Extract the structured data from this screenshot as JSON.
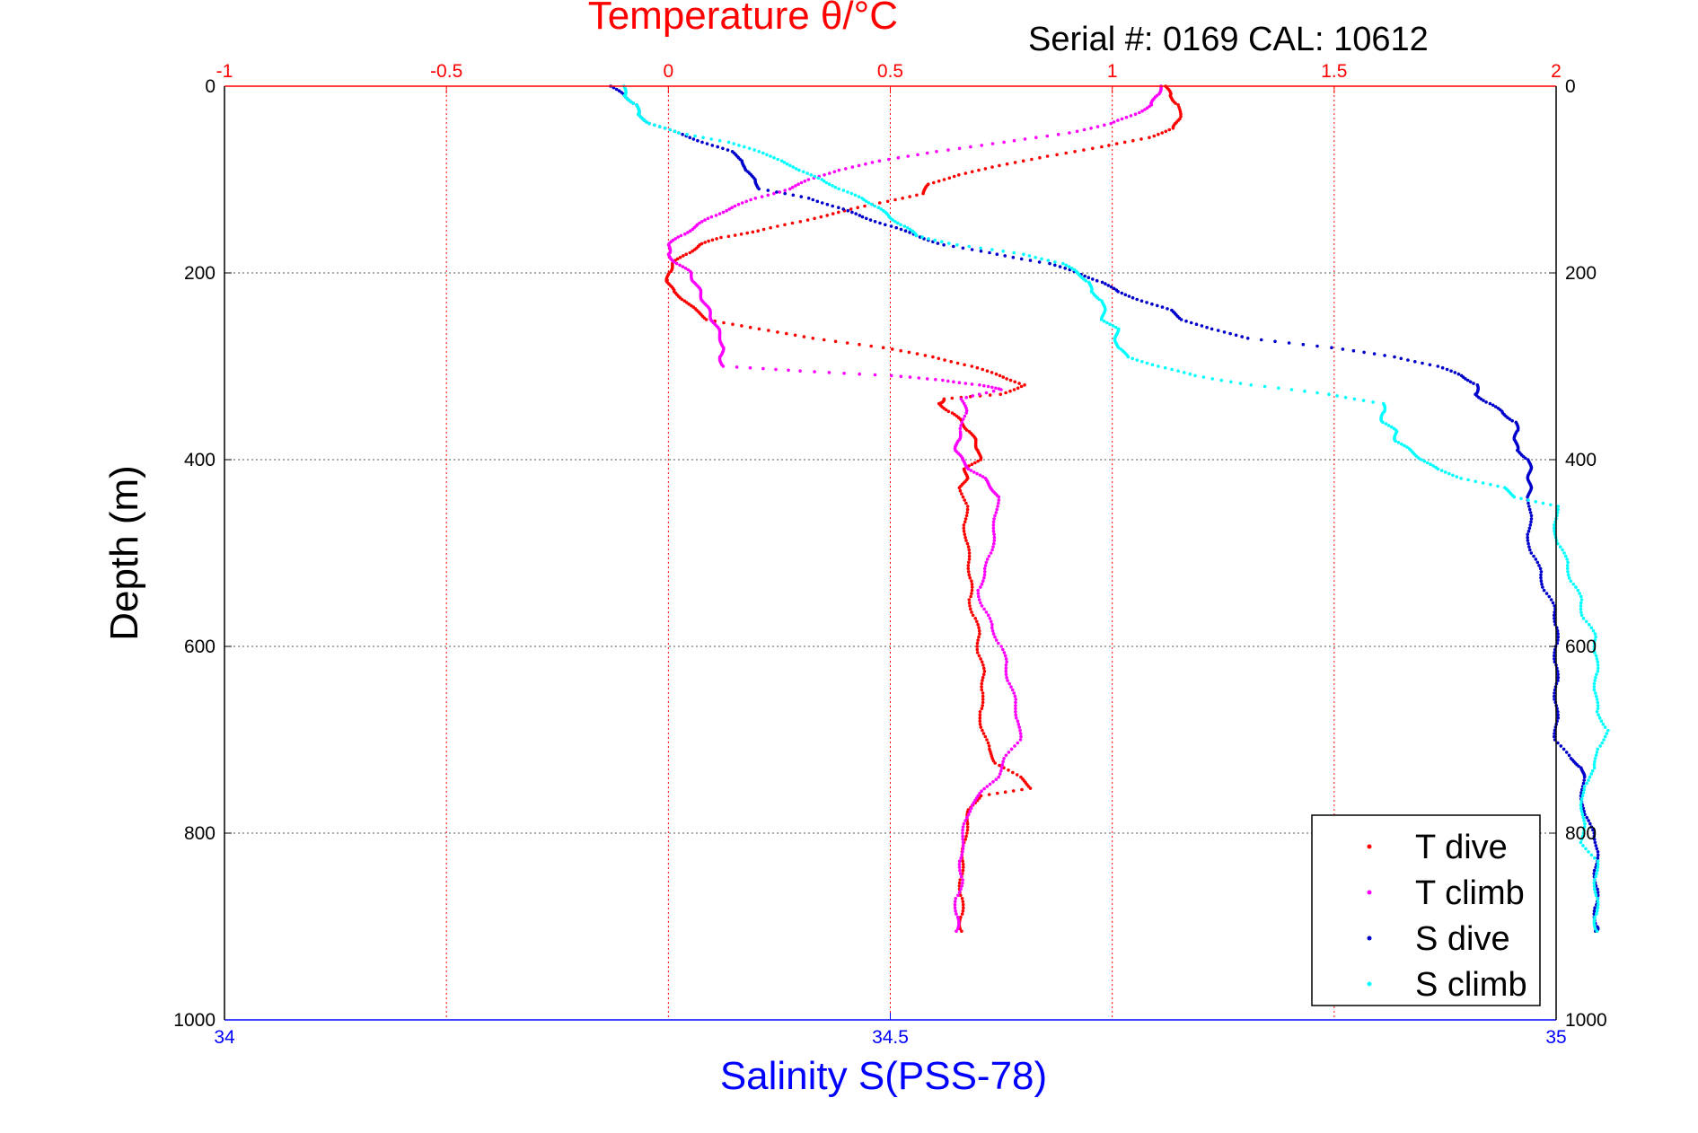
{
  "chart_data": {
    "type": "scatter",
    "title": "Temperature θ/°C",
    "annotation": "Serial #: 0169 CAL: 10612",
    "ylabel": "Depth (m)",
    "xlabel_bottom": "Salinity S(PSS-78)",
    "xlabel_top": "Temperature θ/°C",
    "ylim": [
      1000,
      0
    ],
    "xlim_bottom": [
      34,
      35
    ],
    "xlim_top": [
      -1,
      2
    ],
    "y_ticks": [
      "0",
      "200",
      "400",
      "600",
      "800",
      "1000"
    ],
    "x_bottom_ticks": [
      "34",
      "34.5",
      "35"
    ],
    "x_top_ticks": [
      "-1",
      "-0.5",
      "0",
      "0.5",
      "1",
      "1.5",
      "2"
    ],
    "grid": true,
    "legend_position": "bottom-right",
    "colors": {
      "temperature_axis": "#ff0000",
      "salinity_axis": "#0000ff",
      "t_dive": "#ff0000",
      "t_climb": "#ff00ff",
      "s_dive": "#0000cc",
      "s_climb": "#00ffff"
    },
    "series": [
      {
        "name": "T dive",
        "axis": "top",
        "points": [
          [
            1.12,
            0
          ],
          [
            1.13,
            10
          ],
          [
            1.15,
            20
          ],
          [
            1.15,
            35
          ],
          [
            1.14,
            45
          ],
          [
            1.08,
            55
          ],
          [
            0.98,
            65
          ],
          [
            0.85,
            75
          ],
          [
            0.75,
            85
          ],
          [
            0.65,
            95
          ],
          [
            0.59,
            105
          ],
          [
            0.57,
            115
          ],
          [
            0.48,
            125
          ],
          [
            0.38,
            135
          ],
          [
            0.3,
            145
          ],
          [
            0.2,
            155
          ],
          [
            0.12,
            162
          ],
          [
            0.07,
            170
          ],
          [
            0.04,
            180
          ],
          [
            0.01,
            190
          ],
          [
            0.0,
            200
          ],
          [
            0.0,
            210
          ],
          [
            0.01,
            220
          ],
          [
            0.04,
            230
          ],
          [
            0.06,
            240
          ],
          [
            0.09,
            250
          ],
          [
            0.2,
            260
          ],
          [
            0.33,
            270
          ],
          [
            0.48,
            280
          ],
          [
            0.6,
            290
          ],
          [
            0.68,
            300
          ],
          [
            0.75,
            310
          ],
          [
            0.8,
            320
          ],
          [
            0.75,
            330
          ],
          [
            0.62,
            335
          ],
          [
            0.61,
            340
          ],
          [
            0.64,
            350
          ],
          [
            0.66,
            360
          ],
          [
            0.68,
            370
          ],
          [
            0.69,
            380
          ],
          [
            0.7,
            390
          ],
          [
            0.7,
            400
          ],
          [
            0.67,
            410
          ],
          [
            0.67,
            420
          ],
          [
            0.66,
            430
          ],
          [
            0.67,
            450
          ],
          [
            0.67,
            470
          ],
          [
            0.67,
            490
          ],
          [
            0.68,
            510
          ],
          [
            0.68,
            530
          ],
          [
            0.68,
            550
          ],
          [
            0.69,
            570
          ],
          [
            0.7,
            590
          ],
          [
            0.7,
            610
          ],
          [
            0.71,
            630
          ],
          [
            0.71,
            650
          ],
          [
            0.7,
            670
          ],
          [
            0.71,
            690
          ],
          [
            0.72,
            710
          ],
          [
            0.74,
            725
          ],
          [
            0.79,
            740
          ],
          [
            0.82,
            752
          ],
          [
            0.7,
            760
          ],
          [
            0.68,
            775
          ],
          [
            0.67,
            790
          ],
          [
            0.67,
            810
          ],
          [
            0.66,
            830
          ],
          [
            0.66,
            850
          ],
          [
            0.66,
            870
          ],
          [
            0.66,
            890
          ],
          [
            0.66,
            905
          ]
        ]
      },
      {
        "name": "T climb",
        "axis": "top",
        "points": [
          [
            1.11,
            0
          ],
          [
            1.1,
            10
          ],
          [
            1.09,
            20
          ],
          [
            1.05,
            30
          ],
          [
            1.0,
            40
          ],
          [
            0.9,
            50
          ],
          [
            0.76,
            60
          ],
          [
            0.6,
            70
          ],
          [
            0.48,
            80
          ],
          [
            0.38,
            90
          ],
          [
            0.32,
            100
          ],
          [
            0.27,
            110
          ],
          [
            0.2,
            120
          ],
          [
            0.14,
            130
          ],
          [
            0.1,
            140
          ],
          [
            0.06,
            150
          ],
          [
            0.03,
            160
          ],
          [
            0.0,
            170
          ],
          [
            0.0,
            180
          ],
          [
            0.02,
            190
          ],
          [
            0.05,
            200
          ],
          [
            0.06,
            210
          ],
          [
            0.07,
            220
          ],
          [
            0.08,
            230
          ],
          [
            0.09,
            240
          ],
          [
            0.1,
            250
          ],
          [
            0.11,
            260
          ],
          [
            0.12,
            270
          ],
          [
            0.12,
            280
          ],
          [
            0.12,
            290
          ],
          [
            0.12,
            300
          ],
          [
            0.3,
            305
          ],
          [
            0.5,
            310
          ],
          [
            0.62,
            315
          ],
          [
            0.7,
            320
          ],
          [
            0.75,
            325
          ],
          [
            0.66,
            335
          ],
          [
            0.67,
            350
          ],
          [
            0.66,
            370
          ],
          [
            0.65,
            380
          ],
          [
            0.65,
            390
          ],
          [
            0.66,
            400
          ],
          [
            0.68,
            410
          ],
          [
            0.71,
            420
          ],
          [
            0.73,
            430
          ],
          [
            0.74,
            440
          ],
          [
            0.74,
            460
          ],
          [
            0.73,
            480
          ],
          [
            0.73,
            500
          ],
          [
            0.71,
            520
          ],
          [
            0.7,
            540
          ],
          [
            0.71,
            560
          ],
          [
            0.73,
            580
          ],
          [
            0.75,
            600
          ],
          [
            0.76,
            620
          ],
          [
            0.77,
            640
          ],
          [
            0.78,
            660
          ],
          [
            0.79,
            680
          ],
          [
            0.79,
            700
          ],
          [
            0.76,
            720
          ],
          [
            0.74,
            740
          ],
          [
            0.71,
            755
          ],
          [
            0.68,
            770
          ],
          [
            0.67,
            790
          ],
          [
            0.66,
            810
          ],
          [
            0.66,
            830
          ],
          [
            0.66,
            850
          ],
          [
            0.65,
            870
          ],
          [
            0.65,
            890
          ],
          [
            0.65,
            905
          ]
        ]
      },
      {
        "name": "S dive",
        "axis": "bottom",
        "points": [
          [
            34.29,
            0
          ],
          [
            34.3,
            10
          ],
          [
            34.31,
            20
          ],
          [
            34.31,
            30
          ],
          [
            34.32,
            40
          ],
          [
            34.34,
            50
          ],
          [
            34.36,
            60
          ],
          [
            34.38,
            70
          ],
          [
            34.39,
            80
          ],
          [
            34.39,
            90
          ],
          [
            34.4,
            100
          ],
          [
            34.4,
            110
          ],
          [
            34.44,
            120
          ],
          [
            34.46,
            130
          ],
          [
            34.48,
            140
          ],
          [
            34.5,
            150
          ],
          [
            34.52,
            160
          ],
          [
            34.54,
            170
          ],
          [
            34.58,
            180
          ],
          [
            34.62,
            190
          ],
          [
            34.64,
            200
          ],
          [
            34.66,
            210
          ],
          [
            34.67,
            220
          ],
          [
            34.69,
            230
          ],
          [
            34.71,
            240
          ],
          [
            34.72,
            250
          ],
          [
            34.74,
            260
          ],
          [
            34.77,
            270
          ],
          [
            34.83,
            280
          ],
          [
            34.88,
            290
          ],
          [
            34.91,
            300
          ],
          [
            34.93,
            310
          ],
          [
            34.94,
            320
          ],
          [
            34.94,
            330
          ],
          [
            34.95,
            340
          ],
          [
            34.96,
            350
          ],
          [
            34.97,
            360
          ],
          [
            34.97,
            370
          ],
          [
            34.97,
            380
          ],
          [
            34.97,
            390
          ],
          [
            34.98,
            400
          ],
          [
            34.98,
            410
          ],
          [
            34.98,
            420
          ],
          [
            34.98,
            430
          ],
          [
            34.98,
            440
          ],
          [
            34.98,
            460
          ],
          [
            34.98,
            480
          ],
          [
            34.98,
            500
          ],
          [
            34.99,
            520
          ],
          [
            34.99,
            540
          ],
          [
            35.0,
            560
          ],
          [
            35.0,
            580
          ],
          [
            35.0,
            600
          ],
          [
            35.0,
            620
          ],
          [
            35.0,
            640
          ],
          [
            35.0,
            660
          ],
          [
            35.0,
            680
          ],
          [
            35.0,
            700
          ],
          [
            35.01,
            720
          ],
          [
            35.02,
            730
          ],
          [
            35.02,
            740
          ],
          [
            35.02,
            760
          ],
          [
            35.02,
            780
          ],
          [
            35.03,
            800
          ],
          [
            35.03,
            820
          ],
          [
            35.03,
            840
          ],
          [
            35.03,
            860
          ],
          [
            35.03,
            880
          ],
          [
            35.03,
            900
          ],
          [
            35.03,
            905
          ]
        ]
      },
      {
        "name": "S climb",
        "axis": "bottom",
        "points": [
          [
            34.3,
            0
          ],
          [
            34.3,
            10
          ],
          [
            34.31,
            20
          ],
          [
            34.31,
            30
          ],
          [
            34.32,
            40
          ],
          [
            34.34,
            50
          ],
          [
            34.38,
            60
          ],
          [
            34.4,
            70
          ],
          [
            34.42,
            80
          ],
          [
            34.43,
            90
          ],
          [
            34.45,
            100
          ],
          [
            34.46,
            110
          ],
          [
            34.48,
            120
          ],
          [
            34.49,
            130
          ],
          [
            34.5,
            140
          ],
          [
            34.51,
            150
          ],
          [
            34.52,
            160
          ],
          [
            34.55,
            170
          ],
          [
            34.6,
            180
          ],
          [
            34.63,
            190
          ],
          [
            34.64,
            200
          ],
          [
            34.65,
            210
          ],
          [
            34.65,
            220
          ],
          [
            34.66,
            230
          ],
          [
            34.66,
            240
          ],
          [
            34.66,
            250
          ],
          [
            34.67,
            260
          ],
          [
            34.67,
            270
          ],
          [
            34.67,
            280
          ],
          [
            34.68,
            290
          ],
          [
            34.7,
            300
          ],
          [
            34.73,
            310
          ],
          [
            34.77,
            320
          ],
          [
            34.83,
            330
          ],
          [
            34.87,
            340
          ],
          [
            34.87,
            350
          ],
          [
            34.87,
            360
          ],
          [
            34.88,
            370
          ],
          [
            34.88,
            380
          ],
          [
            34.89,
            390
          ],
          [
            34.9,
            400
          ],
          [
            34.91,
            410
          ],
          [
            34.93,
            420
          ],
          [
            34.96,
            430
          ],
          [
            34.97,
            440
          ],
          [
            35.0,
            450
          ],
          [
            35.0,
            470
          ],
          [
            35.0,
            490
          ],
          [
            35.01,
            510
          ],
          [
            35.01,
            530
          ],
          [
            35.02,
            550
          ],
          [
            35.02,
            570
          ],
          [
            35.03,
            590
          ],
          [
            35.03,
            610
          ],
          [
            35.03,
            630
          ],
          [
            35.03,
            650
          ],
          [
            35.03,
            670
          ],
          [
            35.04,
            690
          ],
          [
            35.03,
            710
          ],
          [
            35.03,
            730
          ],
          [
            35.02,
            750
          ],
          [
            35.02,
            770
          ],
          [
            35.02,
            790
          ],
          [
            35.02,
            810
          ],
          [
            35.03,
            830
          ],
          [
            35.03,
            850
          ],
          [
            35.03,
            870
          ],
          [
            35.03,
            890
          ],
          [
            35.03,
            905
          ]
        ]
      }
    ]
  }
}
